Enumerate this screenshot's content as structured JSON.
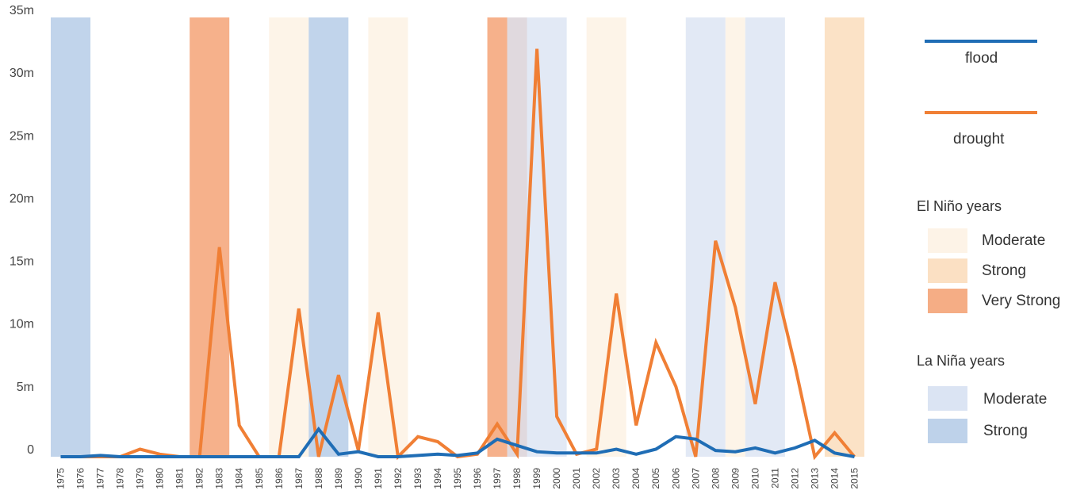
{
  "chart_data": {
    "type": "line",
    "title": "",
    "xlabel": "",
    "ylabel": "",
    "ylim": [
      0,
      35
    ],
    "y_ticks": [
      {
        "value": 0,
        "label": "0"
      },
      {
        "value": 5,
        "label": "5m"
      },
      {
        "value": 10,
        "label": "10m"
      },
      {
        "value": 15,
        "label": "15m"
      },
      {
        "value": 20,
        "label": "20m"
      },
      {
        "value": 25,
        "label": "25m"
      },
      {
        "value": 30,
        "label": "30m"
      },
      {
        "value": 35,
        "label": "35m"
      }
    ],
    "x": [
      "1975",
      "1976",
      "1977",
      "1978",
      "1979",
      "1980",
      "1981",
      "1982",
      "1983",
      "1984",
      "1985",
      "1986",
      "1987",
      "1988",
      "1989",
      "1990",
      "1991",
      "1992",
      "1993",
      "1994",
      "1995",
      "1996",
      "1997",
      "1998",
      "1999",
      "2000",
      "2001",
      "2002",
      "2003",
      "2004",
      "2005",
      "2006",
      "2007",
      "2008",
      "2009",
      "2010",
      "2011",
      "2012",
      "2013",
      "2014",
      "2015"
    ],
    "series": [
      {
        "name": "flood",
        "color": "#1f6db5",
        "values": [
          0,
          0,
          0.1,
          0,
          0,
          0,
          0,
          0,
          0,
          0,
          0,
          0,
          0,
          2.2,
          0.2,
          0.4,
          0,
          0,
          0.1,
          0.2,
          0.1,
          0.3,
          1.4,
          0.9,
          0.4,
          0.3,
          0.3,
          0.3,
          0.6,
          0.2,
          0.6,
          1.6,
          1.4,
          0.5,
          0.4,
          0.7,
          0.3,
          0.7,
          1.3,
          0.3,
          0
        ]
      },
      {
        "name": "drought",
        "color": "#f07f35",
        "values": [
          0,
          0,
          0,
          0,
          0.6,
          0.2,
          0,
          0,
          16.7,
          2.5,
          0,
          0,
          11.8,
          0,
          6.5,
          0.5,
          11.5,
          0,
          1.6,
          1.2,
          0,
          0.2,
          2.6,
          0.2,
          32.5,
          3.2,
          0.2,
          0.6,
          13,
          2.5,
          9.1,
          5.6,
          0,
          17.2,
          11.9,
          4.2,
          13.9,
          7.3,
          0,
          1.9,
          0
        ]
      }
    ],
    "bands": [
      {
        "start": "1975",
        "end": "1976",
        "kind": "la-nina-strong"
      },
      {
        "start": "1982",
        "end": "1983",
        "kind": "el-nino-very-strong"
      },
      {
        "start": "1986",
        "end": "1987",
        "kind": "el-nino-moderate"
      },
      {
        "start": "1988",
        "end": "1989",
        "kind": "la-nina-strong"
      },
      {
        "start": "1991",
        "end": "1992",
        "kind": "el-nino-moderate"
      },
      {
        "start": "1997",
        "end": "1997",
        "kind": "el-nino-very-strong"
      },
      {
        "start": "1998",
        "end": "1998",
        "kind": "el-nino-very-strong"
      },
      {
        "start": "1998",
        "end": "2000",
        "kind": "la-nina-moderate"
      },
      {
        "start": "2002",
        "end": "2003",
        "kind": "el-nino-moderate"
      },
      {
        "start": "2007",
        "end": "2008",
        "kind": "la-nina-moderate"
      },
      {
        "start": "2009",
        "end": "2009",
        "kind": "el-nino-moderate"
      },
      {
        "start": "2010",
        "end": "2011",
        "kind": "la-nina-moderate"
      },
      {
        "start": "2014",
        "end": "2015",
        "kind": "el-nino-strong"
      }
    ],
    "band_colors": {
      "el-nino-moderate": "#fdf3e7",
      "el-nino-strong": "#fbe0c3",
      "el-nino-very-strong": "#f5ad85",
      "la-nina-moderate": "#dbe4f3",
      "la-nina-strong": "#bed2ea"
    },
    "legend": {
      "position": "right",
      "flood_label": "flood",
      "drought_label": "drought",
      "el_nino_title": "El Niño years",
      "la_nina_title": "La Niña years",
      "moderate": "Moderate",
      "strong": "Strong",
      "very_strong": "Very Strong"
    }
  }
}
